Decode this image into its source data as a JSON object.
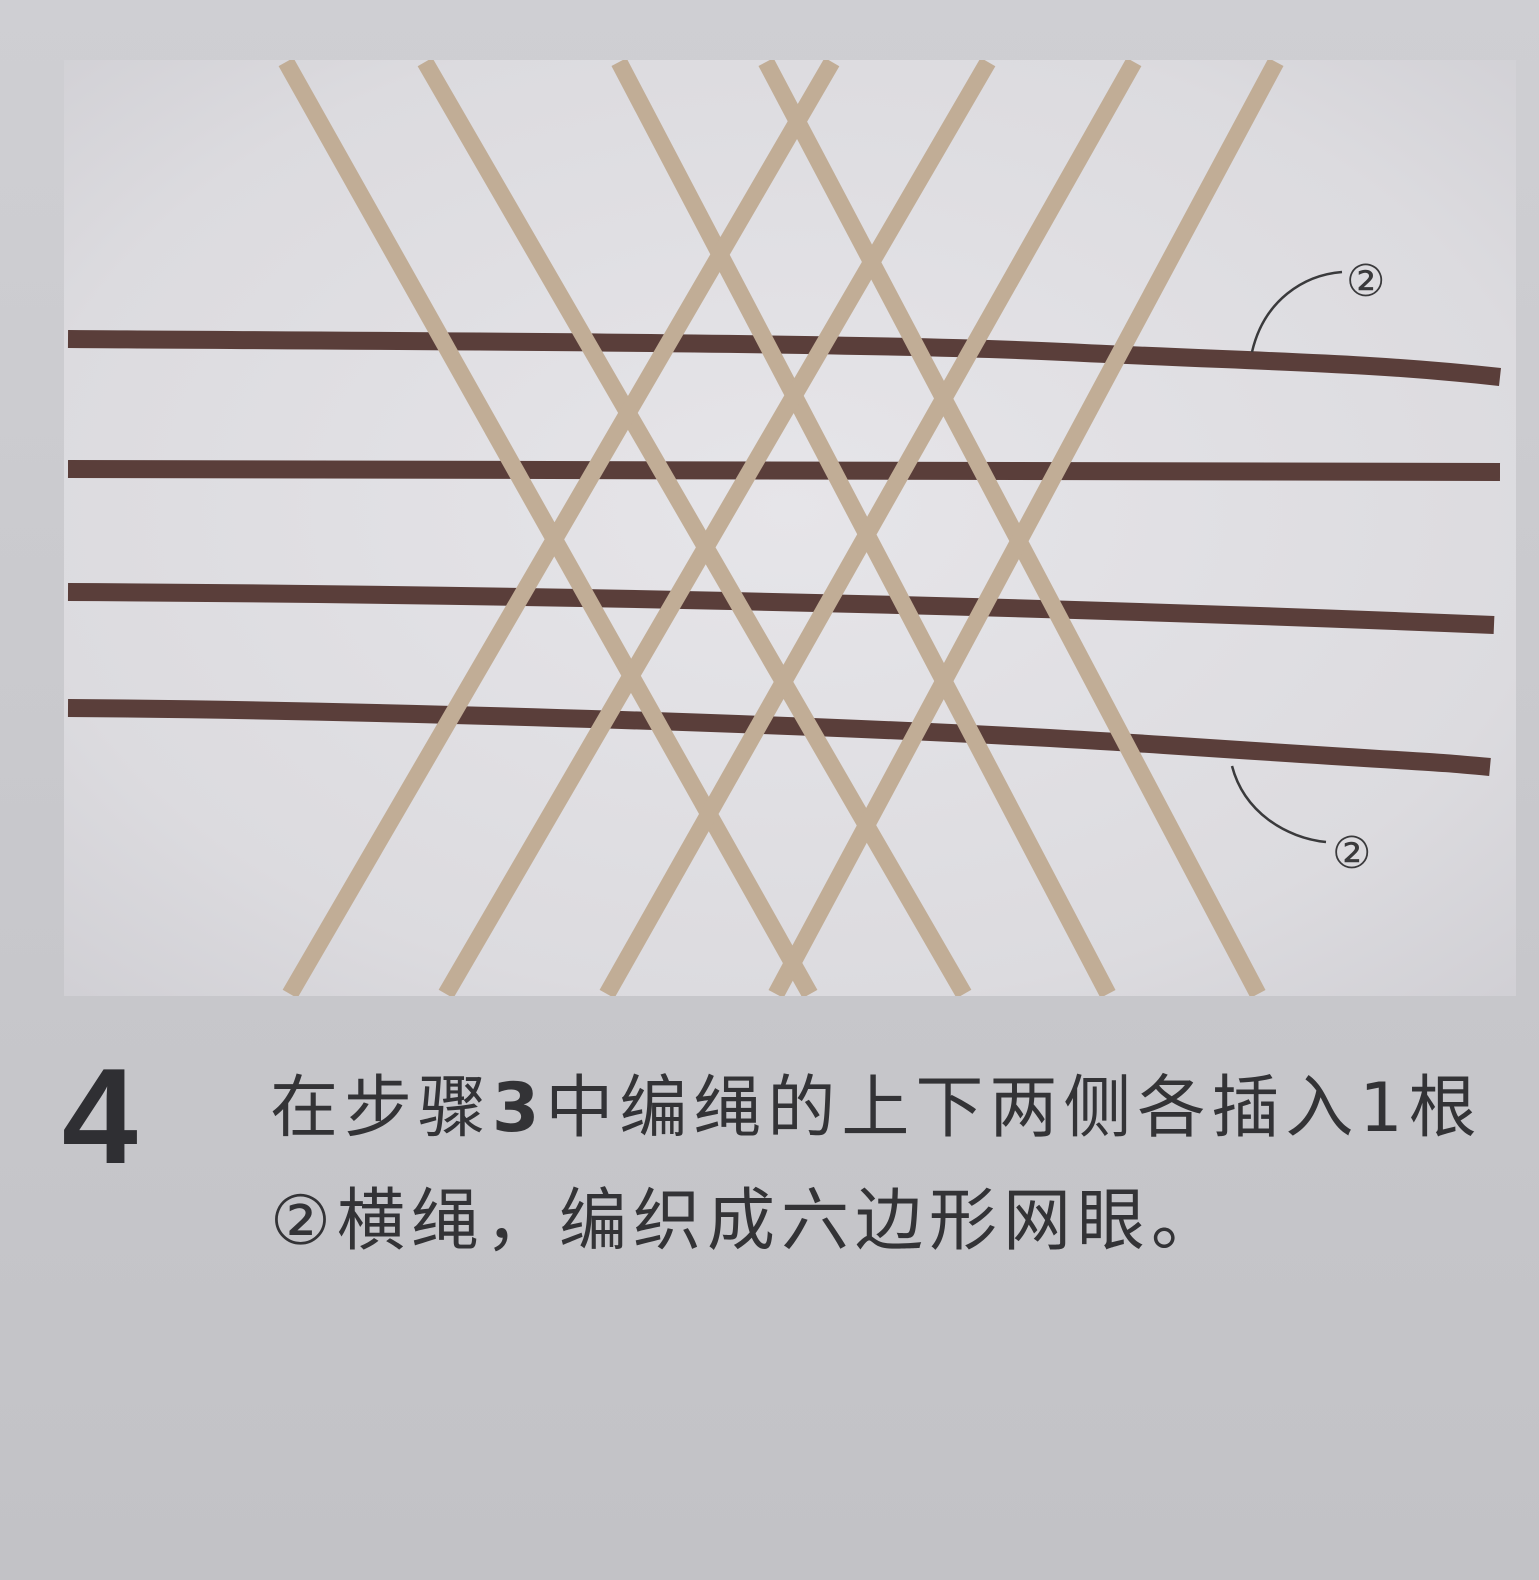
{
  "step": {
    "number": "4"
  },
  "instruction": {
    "segments": [
      "在步骤",
      "3",
      "中编绳的上下两侧各插入1根②横绳，编织成六边形网眼。"
    ]
  },
  "figure": {
    "callouts": [
      {
        "label": "②",
        "position": "upper-right"
      },
      {
        "label": "②",
        "position": "lower-right"
      }
    ],
    "colors": {
      "background": "#dedde1",
      "horizontal_rope": "#5a3e3a",
      "diagonal_rope": "#c1ad96",
      "callout_line": "#3a3a3c"
    }
  }
}
